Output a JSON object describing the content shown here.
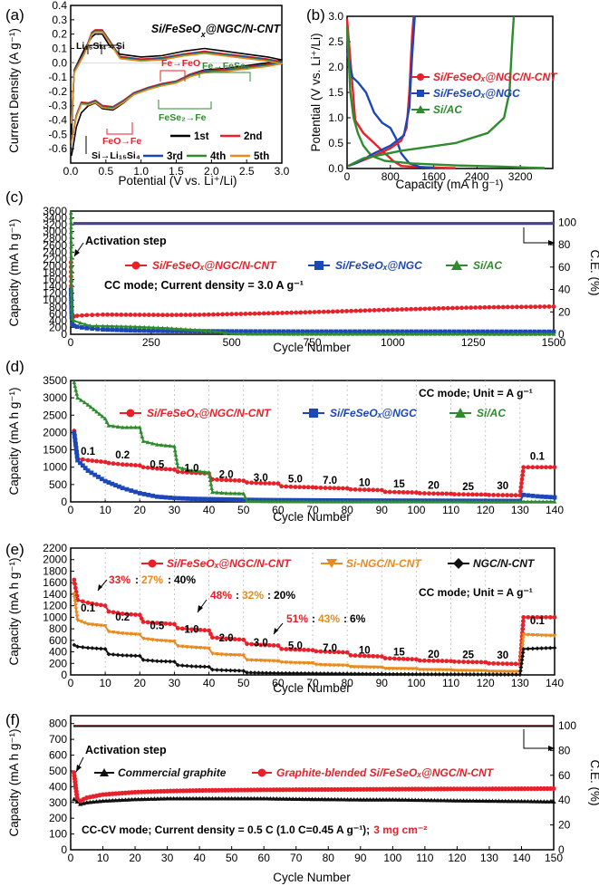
{
  "chart_data": [
    {
      "panel": "(a)",
      "type": "line",
      "title": "Si/FeSeOₓ@NGC/N-CNT",
      "xlabel": "Potential (V vs. Li⁺/Li)",
      "ylabel": "Current Density (A g⁻¹)",
      "xlim": [
        0,
        3.0
      ],
      "ylim": [
        -0.7,
        0.4
      ],
      "xticks": [
        "0.0",
        "0.5",
        "1.0",
        "1.5",
        "2.0",
        "2.5",
        "3.0"
      ],
      "yticks": [
        "0.4",
        "0.3",
        "0.2",
        "0.1",
        "0.0",
        "-0.1",
        "-0.2",
        "-0.3",
        "-0.4",
        "-0.5",
        "-0.6"
      ],
      "legend": [
        "1st",
        "2nd",
        "3rd",
        "4th",
        "5th"
      ],
      "colors": [
        "#000000",
        "#e8202a",
        "#1c47b8",
        "#2e8b2e",
        "#e98a1e"
      ],
      "annotations": [
        "Li₁₅Si₄→Si",
        "Fe→FeO",
        "Fe→FeSe₂",
        "FeSe₂→Fe",
        "FeO→Fe",
        "Si→Li₁₅Si₄"
      ],
      "series": [
        {
          "name": "1st",
          "color": "#000000",
          "x": [
            0.01,
            0.05,
            0.1,
            0.2,
            0.3,
            0.35,
            0.45,
            0.55,
            0.7,
            1.0,
            1.3,
            1.6,
            1.9,
            2.2,
            2.5,
            2.8,
            3.0,
            2.8,
            2.5,
            2.2,
            1.9,
            1.7,
            1.5,
            1.3,
            1.1,
            0.9,
            0.75,
            0.6,
            0.45,
            0.35,
            0.25,
            0.15,
            0.08,
            0.03,
            0.01
          ],
          "y": [
            -0.5,
            -0.05,
            0.0,
            0.1,
            0.18,
            0.2,
            0.2,
            0.12,
            0.06,
            0.04,
            0.05,
            0.08,
            0.1,
            0.08,
            0.06,
            0.04,
            0.02,
            0.0,
            -0.02,
            -0.04,
            -0.05,
            -0.08,
            -0.13,
            -0.15,
            -0.18,
            -0.22,
            -0.28,
            -0.33,
            -0.32,
            -0.28,
            -0.3,
            -0.35,
            -0.45,
            -0.6,
            -0.65
          ]
        }
      ]
    },
    {
      "panel": "(b)",
      "type": "line",
      "xlabel": "Capacity (mA h g⁻¹)",
      "ylabel": "Potential (V vs. Li⁺/Li)",
      "xlim": [
        0,
        3800
      ],
      "ylim": [
        0,
        3.0
      ],
      "xticks": [
        "0",
        "800",
        "1600",
        "2400",
        "3200"
      ],
      "yticks": [
        "0.0",
        "0.5",
        "1.0",
        "1.5",
        "2.0",
        "2.5",
        "3.0"
      ],
      "series": [
        {
          "name": "Si/FeSeOₓ@NGC/N-CNT",
          "color": "#e8202a",
          "x": [
            0,
            150,
            300,
            500,
            700,
            850,
            1000,
            1300,
            1650,
            1900,
            2000
          ],
          "y": [
            2.95,
            0.95,
            0.7,
            0.5,
            0.3,
            0.15,
            0.05,
            0.03,
            0.02,
            0.01,
            0.01
          ]
        },
        {
          "name": "Si/FeSeOₓ@NGC",
          "color": "#1c47b8",
          "x": [
            0,
            100,
            200,
            350,
            500,
            650,
            800,
            900,
            1000,
            1150,
            1350,
            1600
          ],
          "y": [
            2.3,
            1.8,
            1.7,
            1.5,
            1.1,
            0.9,
            0.8,
            0.6,
            0.3,
            0.1,
            0.03,
            0.01
          ]
        },
        {
          "name": "Si/AC",
          "color": "#2e8b2e",
          "x": [
            0,
            60,
            120,
            200,
            300,
            450,
            700,
            1200,
            2000,
            2800,
            3300,
            3650
          ],
          "y": [
            2.8,
            1.5,
            1.0,
            0.7,
            0.45,
            0.25,
            0.15,
            0.1,
            0.06,
            0.04,
            0.02,
            0.01
          ]
        }
      ]
    },
    {
      "panel": "(c)",
      "type": "line",
      "xlabel": "Cycle Number",
      "ylabel": "Capacity (mA h g⁻¹)",
      "y2label": "C.E. (%)",
      "xlim": [
        0,
        1500
      ],
      "ylim": [
        0,
        3600
      ],
      "y2lim": [
        0,
        110
      ],
      "xticks": [
        "0",
        "250",
        "500",
        "750",
        "1000",
        "1250",
        "1500"
      ],
      "yticks": [
        "0",
        "200",
        "400",
        "600",
        "800",
        "1000",
        "1200",
        "1400",
        "1600",
        "1800",
        "2000",
        "2200",
        "2400",
        "2600",
        "2800",
        "3000",
        "3200",
        "3400",
        "3600"
      ],
      "y2ticks": [
        "0",
        "20",
        "40",
        "60",
        "80",
        "100"
      ],
      "annotations": [
        "Activation step",
        "CC mode; Current density = 3.0 A g⁻¹"
      ],
      "series": [
        {
          "name": "Si/FeSeOₓ@NGC/N-CNT",
          "color": "#e8202a",
          "x": [
            1,
            2,
            3,
            5,
            10,
            20,
            50,
            100,
            200,
            300,
            400,
            500,
            600,
            700,
            800,
            900,
            1000,
            1100,
            1200,
            1300,
            1400,
            1500
          ],
          "y": [
            2100,
            1000,
            700,
            560,
            520,
            540,
            560,
            575,
            570,
            565,
            570,
            590,
            610,
            635,
            660,
            690,
            720,
            745,
            770,
            790,
            800,
            810
          ]
        },
        {
          "name": "Si/FeSeOₓ@NGC",
          "color": "#1c47b8",
          "x": [
            1,
            2,
            3,
            5,
            10,
            20,
            50,
            100,
            200,
            300,
            500,
            750,
            1000,
            1250,
            1500
          ],
          "y": [
            1300,
            900,
            500,
            300,
            250,
            220,
            180,
            140,
            110,
            95,
            85,
            80,
            80,
            78,
            75
          ]
        },
        {
          "name": "Si/AC",
          "color": "#2e8b2e",
          "x": [
            1,
            2,
            3,
            5,
            10,
            30,
            60,
            100,
            200,
            300,
            400,
            450,
            480,
            500,
            550,
            1500
          ],
          "y": [
            3550,
            2000,
            900,
            450,
            400,
            330,
            250,
            240,
            220,
            180,
            120,
            80,
            40,
            20,
            10,
            5
          ]
        }
      ]
    },
    {
      "panel": "(d)",
      "type": "line",
      "xlabel": "Cycle Number",
      "ylabel": "Capacity (mA h g⁻¹)",
      "xlim": [
        0,
        140
      ],
      "ylim": [
        0,
        3500
      ],
      "xticks": [
        "0",
        "10",
        "20",
        "30",
        "40",
        "50",
        "60",
        "70",
        "80",
        "90",
        "100",
        "110",
        "120",
        "130",
        "140"
      ],
      "yticks": [
        "0",
        "500",
        "1000",
        "1500",
        "2000",
        "2500",
        "3000",
        "3500"
      ],
      "annotations": [
        "CC mode; Unit = A g⁻¹"
      ],
      "rates": [
        "0.1",
        "0.2",
        "0.5",
        "1.0",
        "2.0",
        "3.0",
        "5.0",
        "7.0",
        "10",
        "15",
        "20",
        "25",
        "30",
        "0.1"
      ],
      "series": [
        {
          "name": "Si/FeSeOₓ@NGC/N-CNT",
          "color": "#e8202a",
          "x": [
            1,
            2,
            5,
            10,
            11,
            15,
            20,
            21,
            25,
            30,
            31,
            35,
            40,
            41,
            45,
            50,
            51,
            55,
            60,
            61,
            65,
            70,
            71,
            75,
            80,
            81,
            85,
            90,
            91,
            95,
            100,
            101,
            105,
            110,
            111,
            115,
            120,
            121,
            125,
            130,
            131,
            135,
            140
          ],
          "y": [
            2050,
            1250,
            1200,
            1150,
            1120,
            1080,
            1050,
            1000,
            960,
            930,
            870,
            840,
            820,
            650,
            630,
            610,
            560,
            540,
            530,
            450,
            430,
            420,
            410,
            400,
            390,
            360,
            350,
            340,
            290,
            280,
            270,
            250,
            240,
            235,
            220,
            215,
            210,
            200,
            195,
            190,
            1000,
            1000,
            1000
          ]
        },
        {
          "name": "Si/FeSeOₓ@NGC",
          "color": "#1c47b8",
          "x": [
            1,
            2,
            5,
            10,
            15,
            20,
            25,
            30,
            35,
            40,
            50,
            60,
            80,
            100,
            120,
            130,
            131,
            135,
            140
          ],
          "y": [
            2000,
            1200,
            900,
            600,
            400,
            250,
            150,
            110,
            90,
            80,
            60,
            50,
            40,
            35,
            30,
            25,
            200,
            160,
            130
          ]
        },
        {
          "name": "Si/AC",
          "color": "#2e8b2e",
          "x": [
            1,
            2,
            5,
            10,
            11,
            15,
            20,
            21,
            25,
            30,
            31,
            35,
            40,
            41,
            45,
            50,
            51,
            60,
            130,
            140
          ],
          "y": [
            3450,
            3000,
            2800,
            2400,
            2200,
            2150,
            2150,
            1750,
            1650,
            1600,
            1000,
            900,
            850,
            280,
            250,
            240,
            20,
            10,
            5,
            5
          ]
        }
      ]
    },
    {
      "panel": "(e)",
      "type": "line",
      "xlabel": "Cycle Number",
      "ylabel": "Capacity (mA h g⁻¹)",
      "xlim": [
        0,
        140
      ],
      "ylim": [
        0,
        2200
      ],
      "xticks": [
        "0",
        "10",
        "20",
        "30",
        "40",
        "50",
        "60",
        "70",
        "80",
        "90",
        "100",
        "110",
        "120",
        "130",
        "140"
      ],
      "yticks": [
        "0",
        "200",
        "400",
        "600",
        "800",
        "1000",
        "1200",
        "1400",
        "1600",
        "1800",
        "2000",
        "2200"
      ],
      "annotations": [
        "CC mode; Unit = A g⁻¹"
      ],
      "ratios": [
        {
          "a": "33%",
          "b": "27%",
          "c": "40%"
        },
        {
          "a": "48%",
          "b": "32%",
          "c": "20%"
        },
        {
          "a": "51%",
          "b": "43%",
          "c": "6%"
        }
      ],
      "rates": [
        "0.1",
        "0.2",
        "0.5",
        "1.0",
        "2.0",
        "3.0",
        "5.0",
        "7.0",
        "10",
        "15",
        "20",
        "25",
        "30",
        "0.1"
      ],
      "series": [
        {
          "name": "Si/FeSeOₓ@NGC/N-CNT",
          "color": "#e8202a",
          "x": [
            1,
            2,
            5,
            10,
            11,
            15,
            20,
            21,
            25,
            30,
            31,
            35,
            40,
            41,
            45,
            50,
            51,
            55,
            60,
            61,
            65,
            70,
            71,
            75,
            80,
            81,
            85,
            90,
            91,
            95,
            100,
            101,
            105,
            110,
            111,
            115,
            120,
            121,
            125,
            130,
            131,
            135,
            140
          ],
          "y": [
            1650,
            1300,
            1250,
            1200,
            1100,
            1060,
            1040,
            920,
            900,
            880,
            810,
            790,
            770,
            650,
            630,
            610,
            540,
            520,
            510,
            450,
            440,
            430,
            410,
            400,
            390,
            340,
            330,
            320,
            290,
            280,
            270,
            250,
            245,
            240,
            230,
            225,
            220,
            200,
            195,
            190,
            1000,
            1000,
            1000
          ]
        },
        {
          "name": "Si-NGC/N-CNT",
          "color": "#e98a1e",
          "x": [
            1,
            2,
            5,
            10,
            11,
            15,
            20,
            21,
            25,
            30,
            31,
            35,
            40,
            41,
            45,
            50,
            51,
            55,
            60,
            61,
            65,
            70,
            71,
            75,
            80,
            81,
            90,
            91,
            100,
            101,
            110,
            111,
            120,
            121,
            130,
            131,
            135,
            140
          ],
          "y": [
            1400,
            950,
            880,
            850,
            750,
            720,
            700,
            630,
            600,
            580,
            500,
            480,
            460,
            370,
            350,
            340,
            260,
            250,
            240,
            220,
            210,
            205,
            180,
            170,
            165,
            140,
            130,
            110,
            105,
            90,
            85,
            75,
            70,
            60,
            55,
            700,
            690,
            680
          ]
        },
        {
          "name": "NGC/N-CNT",
          "color": "#111111",
          "x": [
            1,
            2,
            5,
            10,
            11,
            15,
            20,
            21,
            25,
            30,
            31,
            35,
            40,
            41,
            45,
            50,
            51,
            60,
            70,
            80,
            90,
            100,
            110,
            120,
            130,
            131,
            135,
            140
          ],
          "y": [
            520,
            490,
            470,
            450,
            360,
            340,
            330,
            260,
            240,
            230,
            170,
            150,
            140,
            90,
            80,
            70,
            40,
            30,
            25,
            20,
            15,
            12,
            10,
            8,
            5,
            450,
            460,
            470
          ]
        }
      ]
    },
    {
      "panel": "(f)",
      "type": "line",
      "xlabel": "Cycle Number",
      "ylabel": "Capacity (mA h g⁻¹)",
      "y2label": "C.E. (%)",
      "xlim": [
        0,
        150
      ],
      "ylim": [
        0,
        850
      ],
      "y2lim": [
        0,
        108
      ],
      "xticks": [
        "0",
        "10",
        "20",
        "30",
        "40",
        "50",
        "60",
        "70",
        "80",
        "90",
        "100",
        "110",
        "120",
        "130",
        "140",
        "150"
      ],
      "yticks": [
        "0",
        "100",
        "200",
        "300",
        "400",
        "500",
        "600",
        "700",
        "800"
      ],
      "y2ticks": [
        "0",
        "20",
        "40",
        "60",
        "80",
        "100"
      ],
      "annotations": [
        "Activation step",
        "CC-CV mode; Current density = 0.5 C (1.0 C=0.45 A g⁻¹);",
        "3 mg cm⁻²"
      ],
      "series": [
        {
          "name": "Commercial graphite",
          "color": "#111111",
          "x": [
            1,
            2,
            3,
            4,
            5,
            10,
            20,
            30,
            40,
            50,
            60,
            70,
            80,
            90,
            100,
            110,
            120,
            130,
            140,
            150
          ],
          "y": [
            320,
            305,
            290,
            295,
            300,
            310,
            320,
            325,
            325,
            325,
            325,
            322,
            320,
            318,
            318,
            315,
            312,
            310,
            308,
            305
          ]
        },
        {
          "name": "Graphite-blended Si/FeSeOₓ@NGC/N-CNT",
          "color": "#e8202a",
          "x": [
            1,
            2,
            3,
            4,
            5,
            10,
            20,
            30,
            40,
            50,
            60,
            70,
            80,
            90,
            100,
            110,
            120,
            130,
            140,
            150
          ],
          "y": [
            490,
            330,
            310,
            320,
            330,
            350,
            365,
            372,
            376,
            378,
            380,
            381,
            382,
            383,
            384,
            385,
            386,
            386,
            387,
            388
          ]
        }
      ]
    }
  ]
}
